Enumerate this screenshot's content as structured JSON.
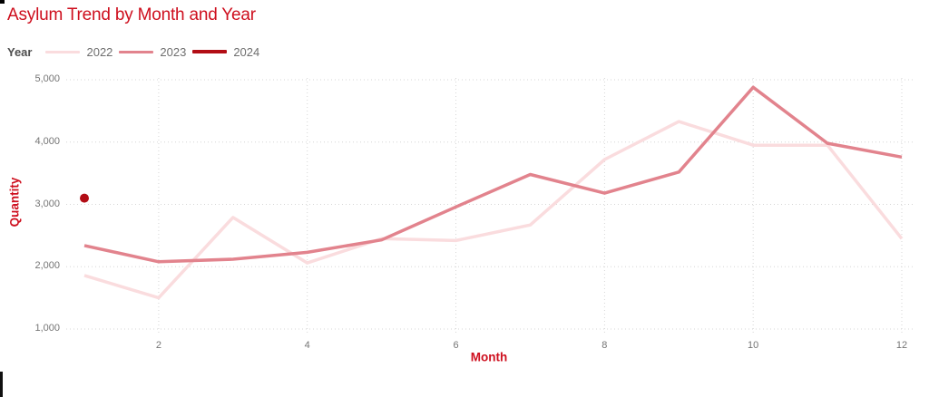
{
  "title": "Asylum Trend by Month and Year",
  "legend": {
    "title": "Year",
    "items": [
      {
        "label": "2022",
        "color": "#fadcde",
        "thickness": 3
      },
      {
        "label": "2023",
        "color": "#e2838d",
        "thickness": 3
      },
      {
        "label": "2024",
        "color": "#b20d15",
        "thickness": 4
      }
    ]
  },
  "chart_data": {
    "type": "line",
    "title": "Asylum Trend by Month and Year",
    "xlabel": "Month",
    "ylabel": "Quantity",
    "x": [
      1,
      2,
      3,
      4,
      5,
      6,
      7,
      8,
      9,
      10,
      11,
      12
    ],
    "series": [
      {
        "name": "2022",
        "color": "#fadcde",
        "values": [
          1860,
          1500,
          2790,
          2060,
          2450,
          2420,
          2670,
          3720,
          4330,
          3950,
          3950,
          2450
        ]
      },
      {
        "name": "2023",
        "color": "#e2838d",
        "values": [
          2340,
          2080,
          2120,
          2230,
          2430,
          2960,
          3480,
          3180,
          3520,
          4880,
          3980,
          3760
        ]
      },
      {
        "name": "2024",
        "color": "#b20d15",
        "style": "point",
        "values": [
          3100
        ]
      }
    ],
    "xlim": [
      1,
      12
    ],
    "ylim": [
      1000,
      5000
    ],
    "x_ticks": [
      2,
      4,
      6,
      8,
      10,
      12
    ],
    "y_ticks": [
      1000,
      2000,
      3000,
      4000,
      5000
    ],
    "y_tick_labels": [
      "1,000",
      "2,000",
      "3,000",
      "4,000",
      "5,000"
    ],
    "grid": "dotted",
    "legend_position": "top-left"
  },
  "colors": {
    "accent_red": "#ce0f1e",
    "tick_gray": "#757575",
    "grid_gray": "#d6d6d6",
    "legend_title_gray": "#4e4e4e",
    "legend_label_gray": "#6f6f6f"
  }
}
